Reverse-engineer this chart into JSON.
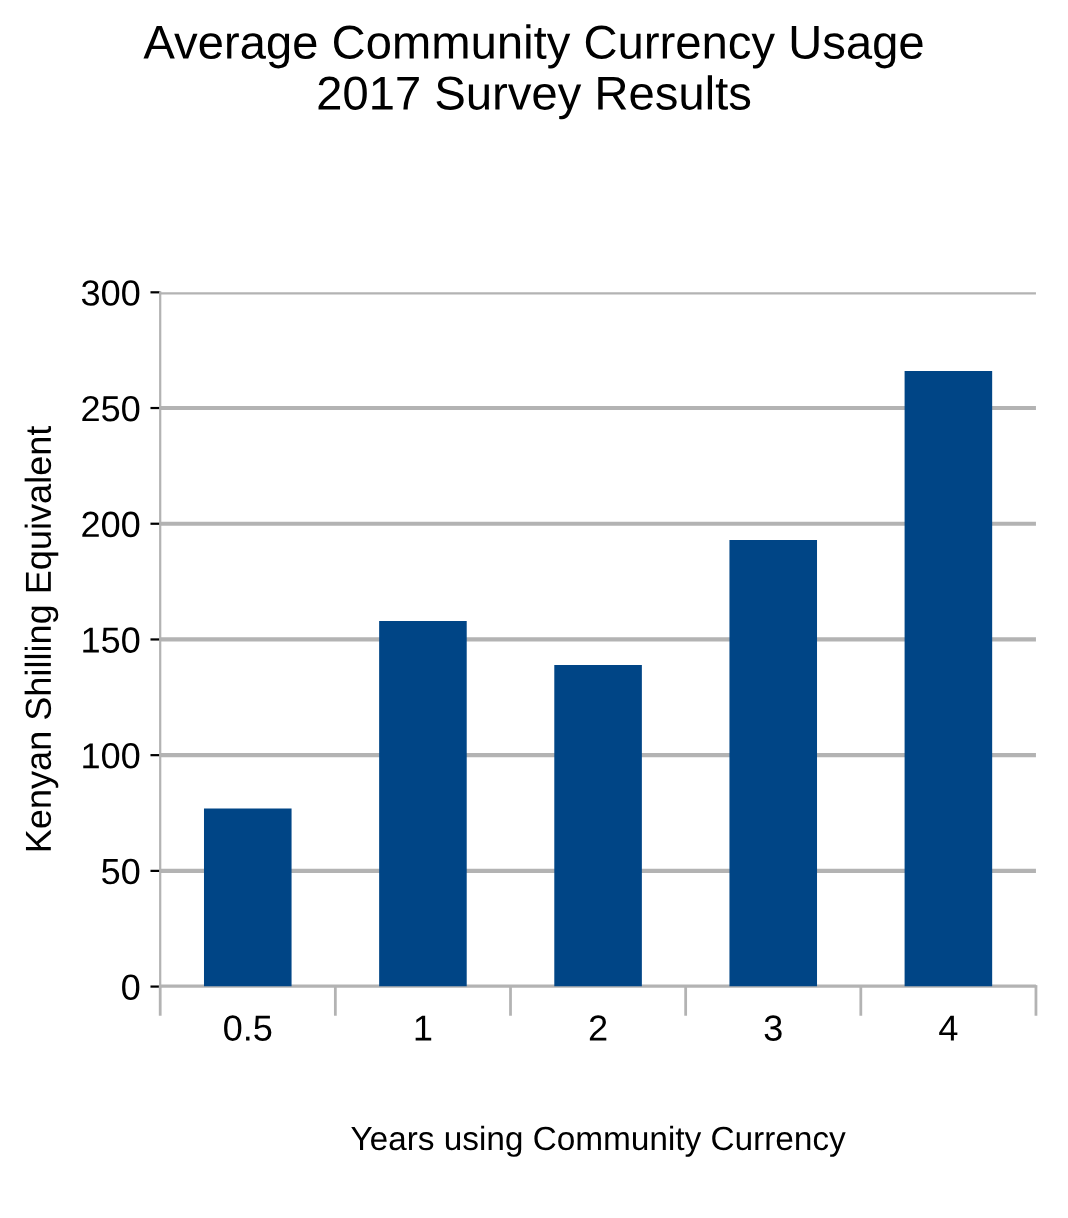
{
  "chart_data": {
    "type": "bar",
    "title": "Average Community Currency Usage\n2017 Survey Results",
    "xlabel": "Years using Community Currency",
    "ylabel": "Kenyan Shilling Equivalent",
    "categories": [
      "0.5",
      "1",
      "2",
      "3",
      "4"
    ],
    "values": [
      77,
      158,
      139,
      193,
      266
    ],
    "color": "#004586",
    "ylim": [
      0,
      300
    ],
    "yticks": [
      0,
      50,
      100,
      150,
      200,
      250,
      300
    ],
    "grid": "y",
    "legend": false
  }
}
